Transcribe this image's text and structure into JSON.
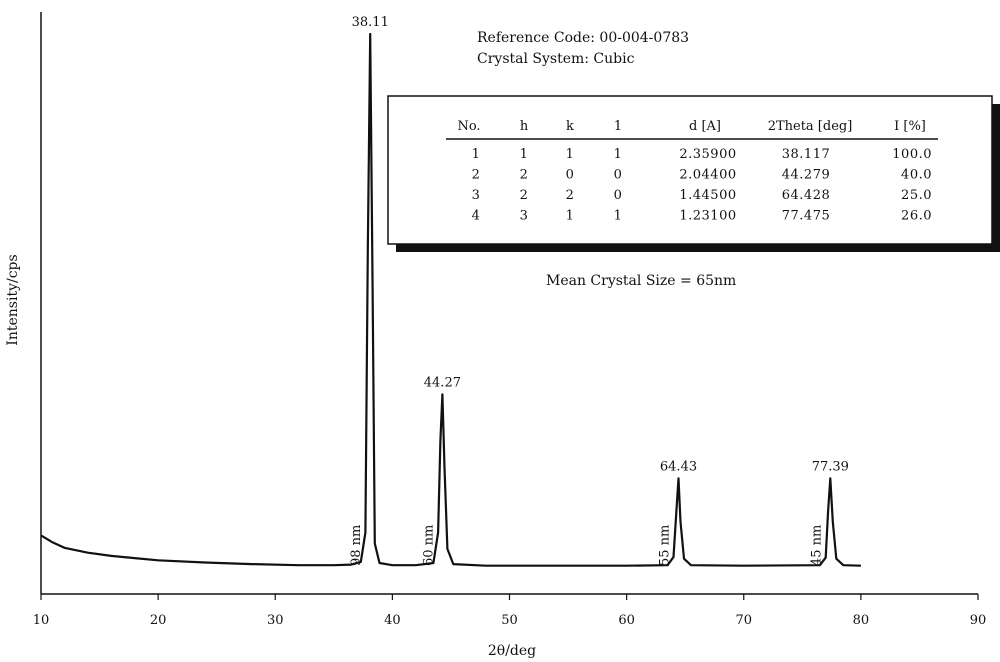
{
  "chart_data": {
    "type": "line",
    "title": "",
    "xlabel": "2θ/deg",
    "ylabel": "Intensity/cps",
    "xlim": [
      10,
      90
    ],
    "x_ticks": [
      10,
      20,
      30,
      40,
      50,
      60,
      70,
      80,
      90
    ],
    "ylim": [
      0,
      100
    ],
    "grid": false,
    "series": [
      {
        "color": "#111111",
        "points": [
          [
            10,
            7.5
          ],
          [
            11,
            6.2
          ],
          [
            12,
            5.2
          ],
          [
            14,
            4.3
          ],
          [
            16,
            3.7
          ],
          [
            18,
            3.3
          ],
          [
            20,
            2.9
          ],
          [
            24,
            2.5
          ],
          [
            28,
            2.2
          ],
          [
            32,
            2.0
          ],
          [
            35,
            2.0
          ],
          [
            36.5,
            2.1
          ],
          [
            37.3,
            2.6
          ],
          [
            37.7,
            8
          ],
          [
            37.9,
            60
          ],
          [
            38.11,
            100
          ],
          [
            38.3,
            55
          ],
          [
            38.5,
            6
          ],
          [
            38.9,
            2.4
          ],
          [
            40,
            2.0
          ],
          [
            42,
            2.0
          ],
          [
            43.5,
            2.4
          ],
          [
            43.9,
            8
          ],
          [
            44.1,
            25
          ],
          [
            44.27,
            33.5
          ],
          [
            44.45,
            20
          ],
          [
            44.7,
            5
          ],
          [
            45.2,
            2.2
          ],
          [
            48,
            1.9
          ],
          [
            55,
            1.9
          ],
          [
            60,
            1.9
          ],
          [
            63.5,
            2.0
          ],
          [
            64.0,
            3.5
          ],
          [
            64.25,
            12
          ],
          [
            64.43,
            18
          ],
          [
            64.6,
            10
          ],
          [
            64.9,
            3.2
          ],
          [
            65.5,
            2.0
          ],
          [
            70,
            1.9
          ],
          [
            76.5,
            2.0
          ],
          [
            77.0,
            3.4
          ],
          [
            77.2,
            12
          ],
          [
            77.39,
            18
          ],
          [
            77.6,
            10
          ],
          [
            77.9,
            3.2
          ],
          [
            78.5,
            2.0
          ],
          [
            80,
            1.9
          ]
        ]
      }
    ],
    "peaks": [
      {
        "x": 38.11,
        "label": "38.11",
        "size": "98 nm",
        "y": 100
      },
      {
        "x": 44.27,
        "label": "44.27",
        "size": "60 nm",
        "y": 33.5
      },
      {
        "x": 64.43,
        "label": "64.43",
        "size": "55 nm",
        "y": 18
      },
      {
        "x": 77.39,
        "label": "77.39",
        "size": "45 nm",
        "y": 18
      }
    ],
    "annotations": {
      "reference_code": "Reference Code: 00-004-0783",
      "crystal_system": "Crystal System: Cubic",
      "mean_crystal_size": "Mean Crystal Size = 65nm"
    },
    "table": {
      "headers": [
        "No.",
        "h",
        "k",
        "1",
        "d   [A]",
        "2Theta [deg]",
        "I   [%]"
      ],
      "rows": [
        [
          "1",
          "1",
          "1",
          "1",
          "2.35900",
          "38.117",
          "100.0"
        ],
        [
          "2",
          "2",
          "0",
          "0",
          "2.04400",
          "44.279",
          "40.0"
        ],
        [
          "3",
          "2",
          "2",
          "0",
          "1.44500",
          "64.428",
          "25.0"
        ],
        [
          "4",
          "3",
          "1",
          "1",
          "1.23100",
          "77.475",
          "26.0"
        ]
      ]
    }
  }
}
